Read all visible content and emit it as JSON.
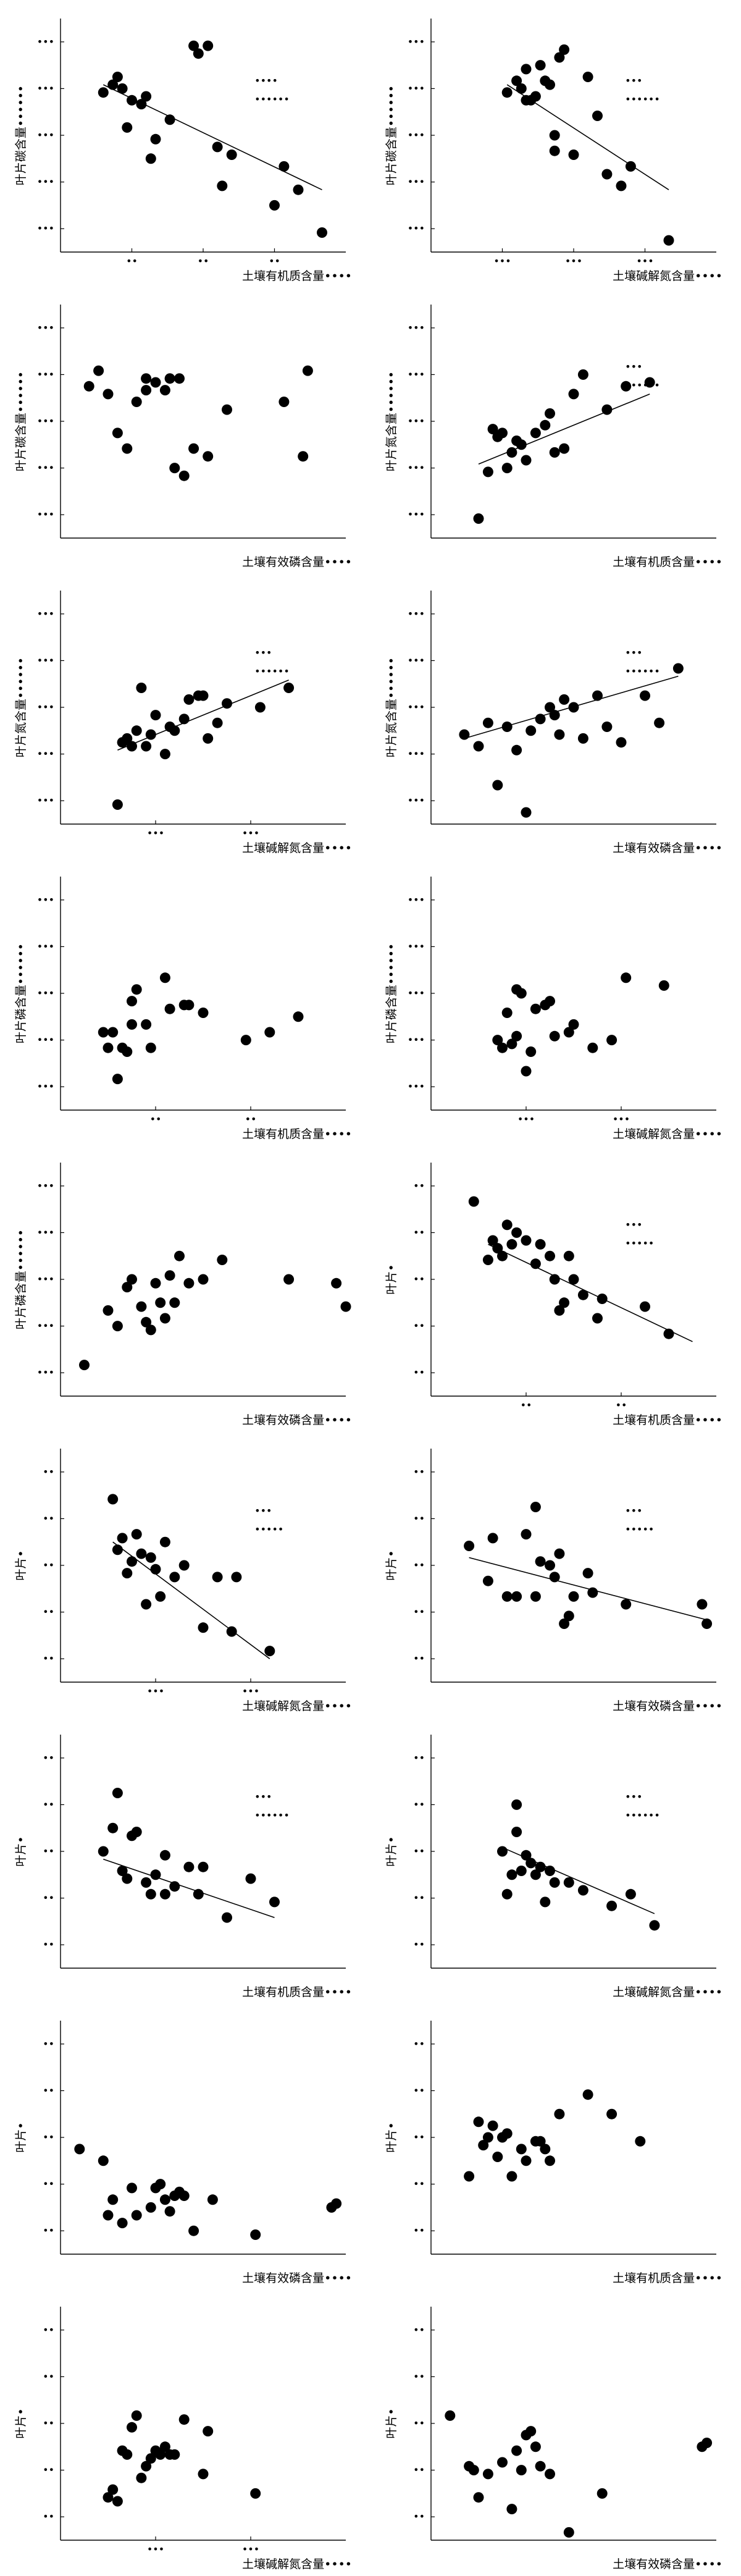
{
  "figure": {
    "title": ""
  },
  "chart_data": [
    {
      "type": "scatter",
      "title": "",
      "xlabel": "土壤有机质含量",
      "x_unit": "••••",
      "ylabel": "叶片碳含量",
      "y_unit": "••••••",
      "xlim": [
        0,
        60
      ],
      "ylim": [
        0,
        60
      ],
      "xticks": [
        "••",
        "••",
        "••"
      ],
      "yticks": [
        "•••",
        "•••",
        "•••",
        "•••",
        "•••"
      ],
      "x": [
        9,
        11,
        13,
        12,
        15,
        18,
        17,
        14,
        20,
        19,
        23,
        28,
        29,
        31,
        33,
        34,
        36,
        45,
        47,
        50,
        55
      ],
      "y": [
        41,
        43,
        42,
        45,
        39,
        40,
        38,
        32,
        29,
        24,
        34,
        53,
        51,
        53,
        27,
        17,
        25,
        12,
        22,
        16,
        5
      ],
      "trendline": [
        [
          9,
          43
        ],
        [
          55,
          16
        ]
      ],
      "annotation": [
        "••••",
        "••••••"
      ],
      "grid": false,
      "legend": "none"
    },
    {
      "type": "scatter",
      "title": "",
      "xlabel": "土壤碱解氮含量",
      "x_unit": "••••",
      "ylabel": "叶片碳含量",
      "y_unit": "••••••",
      "xlim": [
        0,
        60
      ],
      "ylim": [
        0,
        60
      ],
      "xticks": [
        "•••",
        "•••",
        "•••"
      ],
      "yticks": [
        "•••",
        "•••",
        "•••",
        "•••",
        "•••"
      ],
      "x": [
        16,
        18,
        19,
        20,
        22,
        23,
        24,
        21,
        20,
        25,
        26,
        26,
        27,
        28,
        30,
        33,
        35,
        37,
        40,
        42,
        50
      ],
      "y": [
        41,
        44,
        42,
        47,
        40,
        48,
        44,
        39,
        39,
        43,
        26,
        30,
        50,
        52,
        25,
        45,
        35,
        20,
        17,
        22,
        3
      ],
      "trendline": [
        [
          16,
          43
        ],
        [
          50,
          16
        ]
      ],
      "annotation": [
        "•••",
        "••••••"
      ],
      "grid": false,
      "legend": "none"
    },
    {
      "type": "scatter",
      "title": "",
      "xlabel": "土壤有效磷含量",
      "x_unit": "••••",
      "ylabel": "叶片碳含量",
      "y_unit": "••••••",
      "xlim": [
        0,
        60
      ],
      "ylim": [
        0,
        60
      ],
      "xticks": [],
      "yticks": [
        "•••",
        "•••",
        "•••",
        "•••",
        "•••"
      ],
      "x": [
        6,
        8,
        10,
        12,
        14,
        16,
        18,
        18,
        20,
        22,
        23,
        24,
        25,
        26,
        28,
        31,
        35,
        47,
        51,
        52
      ],
      "y": [
        39,
        43,
        37,
        27,
        23,
        35,
        38,
        41,
        40,
        38,
        41,
        18,
        41,
        16,
        23,
        21,
        33,
        35,
        21,
        43
      ],
      "grid": false,
      "legend": "none"
    },
    {
      "type": "scatter",
      "title": "",
      "xlabel": "土壤有机质含量",
      "x_unit": "••••",
      "ylabel": "叶片氮含量",
      "y_unit": "••••••",
      "xlim": [
        0,
        60
      ],
      "ylim": [
        0,
        60
      ],
      "xticks": [],
      "yticks": [
        "•••",
        "•••",
        "•••",
        "•••",
        "•••"
      ],
      "x": [
        10,
        12,
        13,
        14,
        15,
        16,
        17,
        18,
        19,
        20,
        22,
        24,
        25,
        26,
        28,
        30,
        32,
        37,
        41,
        46
      ],
      "y": [
        5,
        17,
        28,
        26,
        27,
        18,
        22,
        25,
        24,
        20,
        27,
        29,
        32,
        22,
        23,
        37,
        42,
        33,
        39,
        40
      ],
      "trendline": [
        [
          10,
          19
        ],
        [
          46,
          37
        ]
      ],
      "annotation": [
        "•••",
        "••••••"
      ],
      "grid": false,
      "legend": "none"
    },
    {
      "type": "scatter",
      "title": "",
      "xlabel": "土壤碱解氮含量",
      "x_unit": "••••",
      "ylabel": "叶片氮含量",
      "y_unit": "••••••",
      "xlim": [
        0,
        60
      ],
      "ylim": [
        0,
        60
      ],
      "xticks": [
        "•••",
        "•••"
      ],
      "yticks": [
        "•••",
        "•••",
        "•••",
        "•••",
        "•••"
      ],
      "x": [
        12,
        13,
        14,
        15,
        16,
        17,
        18,
        19,
        20,
        22,
        23,
        24,
        26,
        27,
        29,
        30,
        31,
        33,
        35,
        42,
        48
      ],
      "y": [
        5,
        21,
        22,
        20,
        24,
        35,
        20,
        23,
        28,
        18,
        25,
        24,
        27,
        32,
        33,
        33,
        22,
        26,
        31,
        30,
        35
      ],
      "trendline": [
        [
          12,
          19
        ],
        [
          48,
          37
        ]
      ],
      "annotation": [
        "•••",
        "••••••"
      ],
      "grid": false,
      "legend": "none"
    },
    {
      "type": "scatter",
      "title": "",
      "xlabel": "土壤有效磷含量",
      "x_unit": "••••",
      "ylabel": "叶片氮含量",
      "y_unit": "••••••",
      "xlim": [
        0,
        60
      ],
      "ylim": [
        0,
        60
      ],
      "xticks": [],
      "yticks": [
        "•••",
        "•••",
        "•••",
        "•••",
        "•••"
      ],
      "x": [
        7,
        10,
        12,
        14,
        16,
        18,
        20,
        21,
        23,
        25,
        26,
        27,
        28,
        30,
        32,
        35,
        37,
        40,
        45,
        48,
        52
      ],
      "y": [
        23,
        20,
        26,
        10,
        25,
        19,
        3,
        24,
        27,
        30,
        28,
        23,
        32,
        30,
        22,
        33,
        25,
        21,
        33,
        26,
        40
      ],
      "trendline": [
        [
          7,
          22
        ],
        [
          52,
          38
        ]
      ],
      "annotation": [
        "•••",
        "••••••"
      ],
      "grid": false,
      "legend": "none"
    },
    {
      "type": "scatter",
      "title": "",
      "xlabel": "土壤有机质含量",
      "x_unit": "••••",
      "ylabel": "叶片磷含量",
      "y_unit": "••••••",
      "xlim": [
        0,
        60
      ],
      "ylim": [
        0,
        60
      ],
      "xticks": [
        "••",
        "••"
      ],
      "yticks": [
        "•••",
        "•••",
        "•••",
        "•••",
        "•••"
      ],
      "x": [
        9,
        10,
        11,
        12,
        13,
        14,
        15,
        15,
        16,
        18,
        19,
        22,
        23,
        26,
        27,
        30,
        39,
        44,
        50
      ],
      "y": [
        20,
        16,
        20,
        8,
        16,
        15,
        28,
        22,
        31,
        22,
        16,
        34,
        26,
        27,
        27,
        25,
        18,
        20,
        24
      ],
      "grid": false,
      "legend": "none"
    },
    {
      "type": "scatter",
      "title": "",
      "xlabel": "土壤碱解氮含量",
      "x_unit": "••••",
      "ylabel": "叶片磷含量",
      "y_unit": "••••••",
      "xlim": [
        0,
        60
      ],
      "ylim": [
        0,
        60
      ],
      "xticks": [
        "•••",
        "•••"
      ],
      "yticks": [
        "•••",
        "•••",
        "•••",
        "•••",
        "•••"
      ],
      "x": [
        14,
        15,
        16,
        17,
        18,
        18,
        19,
        20,
        21,
        22,
        24,
        25,
        26,
        29,
        30,
        34,
        38,
        41,
        49
      ],
      "y": [
        18,
        16,
        25,
        17,
        31,
        19,
        30,
        10,
        15,
        26,
        27,
        28,
        19,
        20,
        22,
        16,
        18,
        34,
        32
      ],
      "grid": false,
      "legend": "none"
    },
    {
      "type": "scatter",
      "title": "",
      "xlabel": "土壤有效磷含量",
      "x_unit": "••••",
      "ylabel": "叶片磷含量",
      "y_unit": "••••••",
      "xlim": [
        0,
        60
      ],
      "ylim": [
        0,
        60
      ],
      "xticks": [],
      "yticks": [
        "•••",
        "•••",
        "•••",
        "•••",
        "•••"
      ],
      "x": [
        5,
        10,
        12,
        14,
        15,
        17,
        18,
        19,
        20,
        21,
        22,
        23,
        24,
        25,
        27,
        30,
        34,
        48,
        58,
        60
      ],
      "y": [
        8,
        22,
        18,
        28,
        30,
        23,
        19,
        17,
        29,
        24,
        20,
        31,
        24,
        36,
        29,
        30,
        35,
        30,
        29,
        23
      ],
      "grid": false,
      "legend": "none"
    },
    {
      "type": "scatter",
      "title": "",
      "xlabel": "土壤有机质含量",
      "x_unit": "••••",
      "ylabel": "叶片",
      "y_unit": "•",
      "xlim": [
        0,
        60
      ],
      "ylim": [
        0,
        60
      ],
      "xticks": [
        "••",
        "••"
      ],
      "yticks": [
        "••",
        "••",
        "••",
        "••",
        "••"
      ],
      "x": [
        9,
        12,
        13,
        14,
        15,
        16,
        17,
        18,
        20,
        22,
        23,
        25,
        26,
        27,
        28,
        29,
        30,
        32,
        35,
        36,
        45,
        50
      ],
      "y": [
        50,
        35,
        40,
        38,
        36,
        44,
        39,
        42,
        40,
        34,
        39,
        36,
        30,
        22,
        24,
        36,
        30,
        26,
        20,
        25,
        23,
        16
      ],
      "trendline": [
        [
          12,
          39
        ],
        [
          55,
          14
        ]
      ],
      "annotation": [
        "•••",
        "•••••"
      ],
      "grid": false,
      "legend": "none"
    },
    {
      "type": "scatter",
      "title": "",
      "xlabel": "土壤碱解氮含量",
      "x_unit": "••••",
      "ylabel": "叶片",
      "y_unit": "•",
      "xlim": [
        0,
        60
      ],
      "ylim": [
        0,
        60
      ],
      "xticks": [
        "•••",
        "•••"
      ],
      "yticks": [
        "••",
        "••",
        "••",
        "••",
        "••"
      ],
      "x": [
        11,
        12,
        13,
        14,
        15,
        16,
        17,
        18,
        19,
        20,
        21,
        22,
        24,
        26,
        30,
        33,
        36,
        37,
        44
      ],
      "y": [
        47,
        34,
        37,
        28,
        31,
        38,
        33,
        20,
        32,
        29,
        22,
        36,
        27,
        30,
        14,
        27,
        13,
        27,
        8
      ],
      "trendline": [
        [
          11,
          36
        ],
        [
          44,
          6
        ]
      ],
      "annotation": [
        "•••",
        "•••••"
      ],
      "grid": false,
      "legend": "none"
    },
    {
      "type": "scatter",
      "title": "",
      "xlabel": "土壤有效磷含量",
      "x_unit": "••••",
      "ylabel": "叶片",
      "y_unit": "•",
      "xlim": [
        0,
        60
      ],
      "ylim": [
        0,
        60
      ],
      "xticks": [],
      "yticks": [
        "••",
        "••",
        "••",
        "••",
        "••"
      ],
      "x": [
        8,
        12,
        13,
        16,
        18,
        20,
        22,
        22,
        23,
        25,
        26,
        27,
        28,
        29,
        30,
        33,
        34,
        41,
        57,
        58
      ],
      "y": [
        35,
        26,
        37,
        22,
        22,
        38,
        22,
        45,
        31,
        30,
        27,
        33,
        15,
        17,
        22,
        28,
        23,
        20,
        20,
        15
      ],
      "trendline": [
        [
          8,
          32
        ],
        [
          58,
          16
        ]
      ],
      "annotation": [
        "•••",
        "•••••"
      ],
      "grid": false,
      "legend": "none"
    },
    {
      "type": "scatter",
      "title": "",
      "xlabel": "土壤有机质含量",
      "x_unit": "••••",
      "ylabel": "叶片",
      "y_unit": "•",
      "xlim": [
        0,
        60
      ],
      "ylim": [
        0,
        60
      ],
      "xticks": [],
      "yticks": [
        "••",
        "••",
        "••",
        "••",
        "••"
      ],
      "x": [
        9,
        11,
        12,
        13,
        14,
        15,
        16,
        18,
        19,
        20,
        22,
        22,
        24,
        27,
        29,
        30,
        35,
        40,
        45
      ],
      "y": [
        30,
        36,
        45,
        25,
        23,
        34,
        35,
        22,
        19,
        24,
        29,
        19,
        21,
        26,
        19,
        26,
        13,
        23,
        17
      ],
      "trendline": [
        [
          9,
          28
        ],
        [
          45,
          13
        ]
      ],
      "annotation": [
        "•••",
        "••••••"
      ],
      "grid": false,
      "legend": "none"
    },
    {
      "type": "scatter",
      "title": "",
      "xlabel": "土壤碱解氮含量",
      "x_unit": "••••",
      "ylabel": "叶片",
      "y_unit": "•",
      "xlim": [
        0,
        60
      ],
      "ylim": [
        0,
        60
      ],
      "xticks": [],
      "yticks": [
        "••",
        "••",
        "••",
        "••",
        "••"
      ],
      "x": [
        15,
        16,
        17,
        18,
        18,
        19,
        20,
        21,
        22,
        23,
        24,
        25,
        26,
        29,
        32,
        38,
        42,
        47
      ],
      "y": [
        30,
        19,
        24,
        35,
        42,
        25,
        29,
        27,
        24,
        26,
        17,
        25,
        22,
        22,
        20,
        16,
        19,
        11
      ],
      "trendline": [
        [
          15,
          31
        ],
        [
          47,
          14
        ]
      ],
      "annotation": [
        "•••",
        "••••••"
      ],
      "grid": false,
      "legend": "none"
    },
    {
      "type": "scatter",
      "title": "",
      "xlabel": "土壤有效磷含量",
      "x_unit": "••••",
      "ylabel": "叶片",
      "y_unit": "•",
      "xlim": [
        0,
        60
      ],
      "ylim": [
        0,
        60
      ],
      "xticks": [],
      "yticks": [
        "••",
        "••",
        "••",
        "••",
        "••"
      ],
      "x": [
        4,
        9,
        10,
        11,
        13,
        15,
        16,
        19,
        20,
        21,
        22,
        23,
        24,
        25,
        26,
        28,
        32,
        41,
        57,
        58
      ],
      "y": [
        27,
        24,
        10,
        14,
        8,
        17,
        10,
        12,
        17,
        18,
        14,
        11,
        15,
        16,
        15,
        6,
        14,
        5,
        12,
        13
      ],
      "grid": false,
      "legend": "none"
    },
    {
      "type": "scatter",
      "title": "",
      "xlabel": "土壤有机质含量",
      "x_unit": "••••",
      "ylabel": "叶片",
      "y_unit": "•",
      "xlim": [
        0,
        60
      ],
      "ylim": [
        0,
        60
      ],
      "xticks": [],
      "yticks": [
        "••",
        "••",
        "••",
        "••",
        "••"
      ],
      "x": [
        8,
        10,
        11,
        12,
        13,
        14,
        15,
        16,
        17,
        19,
        20,
        22,
        23,
        24,
        25,
        27,
        33,
        38,
        44
      ],
      "y": [
        20,
        34,
        28,
        30,
        33,
        25,
        30,
        31,
        20,
        27,
        24,
        29,
        29,
        27,
        24,
        36,
        41,
        36,
        29
      ],
      "grid": false,
      "legend": "none"
    },
    {
      "type": "scatter",
      "title": "",
      "xlabel": "土壤碱解氮含量",
      "x_unit": "••••",
      "ylabel": "叶片",
      "y_unit": "•",
      "xlim": [
        0,
        60
      ],
      "ylim": [
        0,
        60
      ],
      "xticks": [
        "•••",
        "•••"
      ],
      "yticks": [
        "••",
        "••",
        "••",
        "••",
        "••"
      ],
      "x": [
        10,
        11,
        12,
        13,
        14,
        15,
        16,
        17,
        18,
        19,
        20,
        21,
        22,
        23,
        24,
        26,
        30,
        31,
        41
      ],
      "y": [
        11,
        13,
        10,
        23,
        22,
        29,
        32,
        16,
        19,
        21,
        23,
        22,
        24,
        22,
        22,
        31,
        17,
        28,
        12
      ],
      "grid": false,
      "legend": "none"
    },
    {
      "type": "scatter",
      "title": "",
      "xlabel": "土壤有效磷含量",
      "x_unit": "••••",
      "ylabel": "叶片",
      "y_unit": "•",
      "xlim": [
        0,
        60
      ],
      "ylim": [
        0,
        60
      ],
      "xticks": [],
      "yticks": [
        "••",
        "••",
        "••",
        "••",
        "••"
      ],
      "x": [
        4,
        8,
        9,
        10,
        12,
        15,
        17,
        18,
        19,
        20,
        21,
        22,
        23,
        25,
        29,
        36,
        57,
        58
      ],
      "y": [
        32,
        19,
        18,
        11,
        17,
        20,
        8,
        23,
        18,
        27,
        28,
        24,
        19,
        17,
        2,
        12,
        24,
        25
      ],
      "grid": false,
      "legend": "none"
    }
  ]
}
